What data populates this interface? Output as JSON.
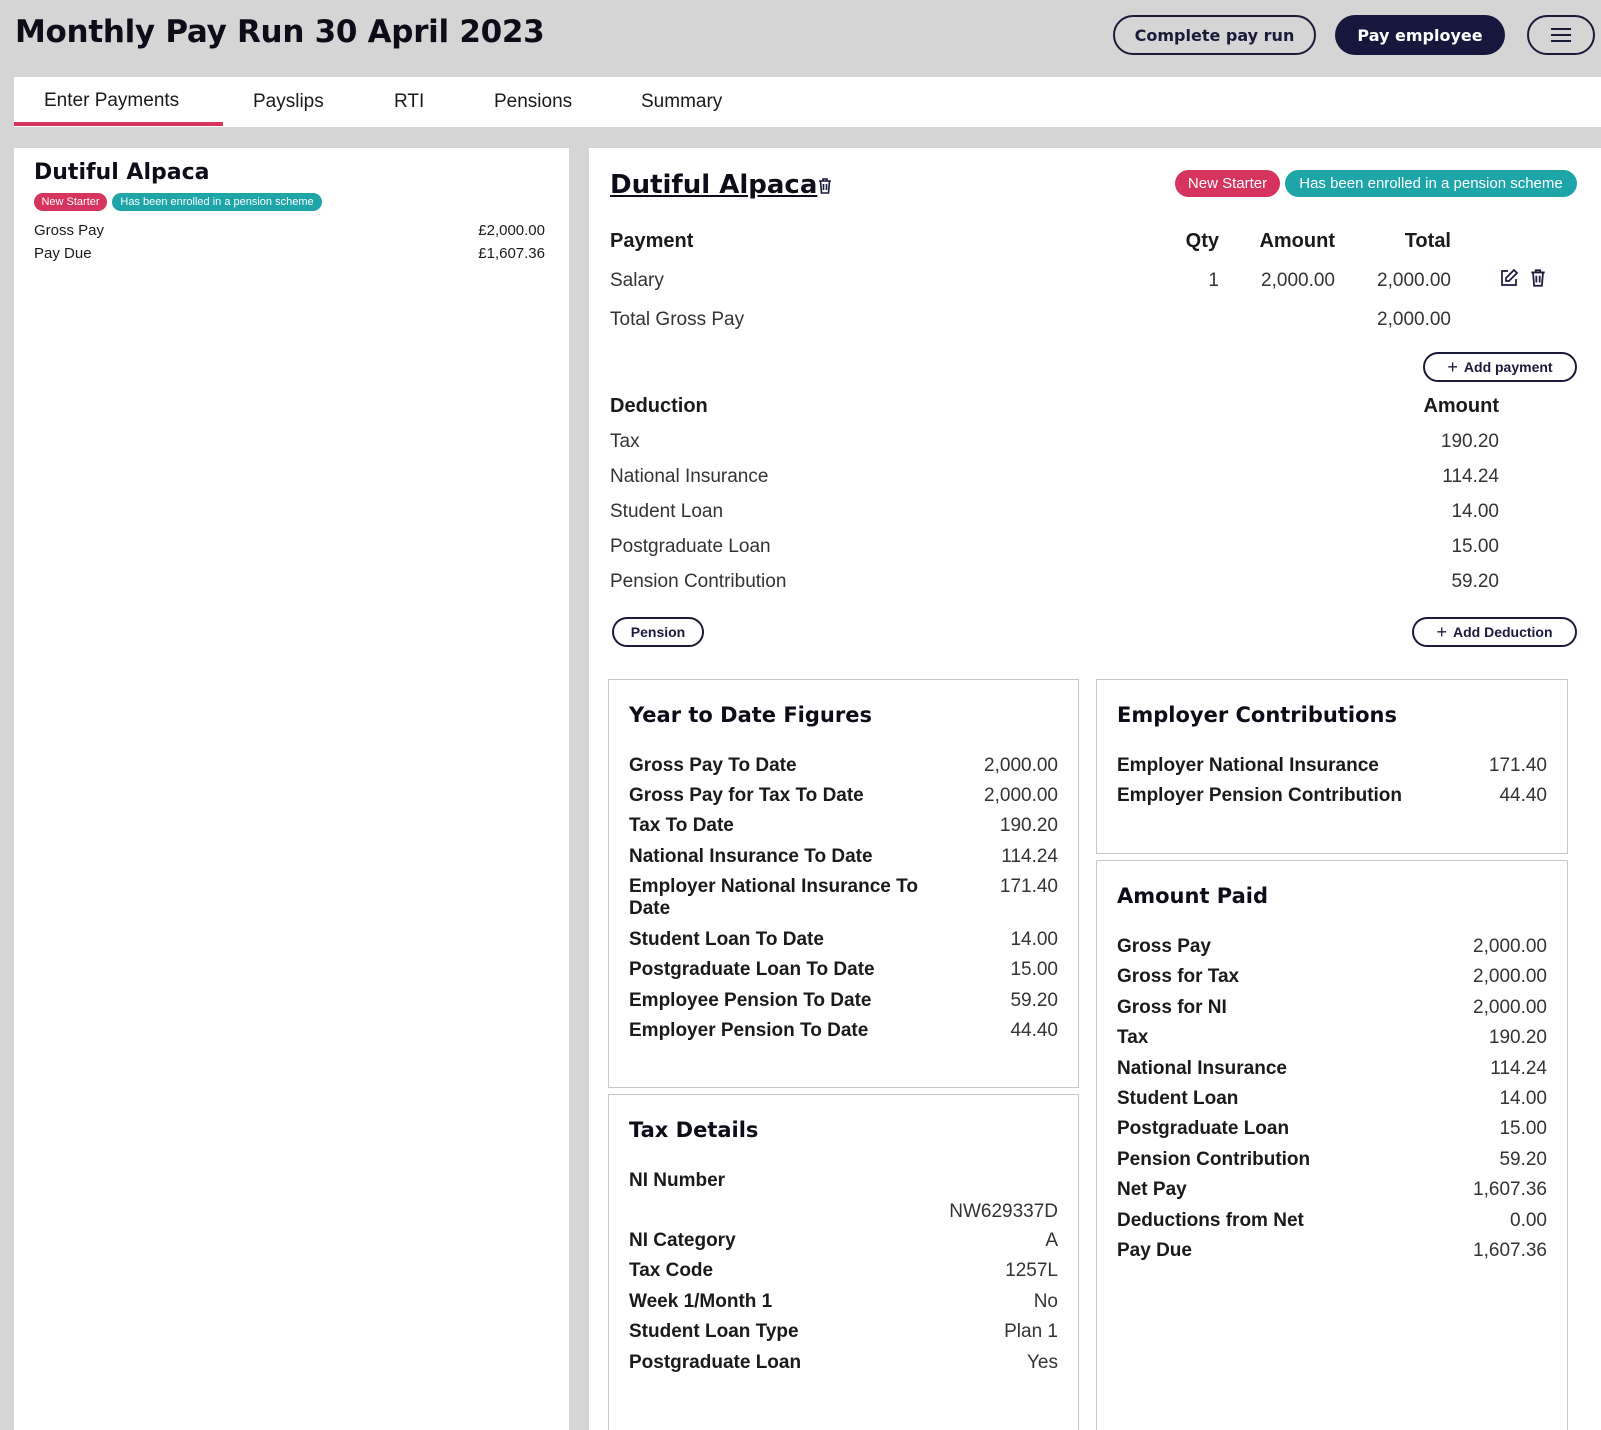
{
  "header": {
    "title": "Monthly Pay Run 30 April 2023",
    "complete_label": "Complete pay run",
    "pay_label": "Pay employee"
  },
  "tabs": [
    "Enter Payments",
    "Payslips",
    "RTI",
    "Pensions",
    "Summary"
  ],
  "active_tab": "Enter Payments",
  "colors": {
    "accent": "#d6335e",
    "teal": "#1da5a8",
    "navy": "#17173d"
  },
  "employee_list": {
    "name": "Dutiful Alpaca",
    "badges": [
      "New Starter",
      "Has been enrolled in a pension scheme"
    ],
    "gross_pay_label": "Gross Pay",
    "gross_pay_value": "£2,000.00",
    "pay_due_label": "Pay Due",
    "pay_due_value": "£1,607.36"
  },
  "detail": {
    "name": "Dutiful Alpaca",
    "badges": [
      "New Starter",
      "Has been enrolled in a pension scheme"
    ],
    "payments": {
      "headers": {
        "payment": "Payment",
        "qty": "Qty",
        "amount": "Amount",
        "total": "Total"
      },
      "rows": [
        {
          "name": "Salary",
          "qty": "1",
          "amount": "2,000.00",
          "total": "2,000.00"
        }
      ],
      "total_label": "Total Gross Pay",
      "total_value": "2,000.00",
      "add_label": "Add payment"
    },
    "deductions": {
      "headers": {
        "deduction": "Deduction",
        "amount": "Amount"
      },
      "rows": [
        {
          "name": "Tax",
          "amount": "190.20"
        },
        {
          "name": "National Insurance",
          "amount": "114.24"
        },
        {
          "name": "Student Loan",
          "amount": "14.00"
        },
        {
          "name": "Postgraduate Loan",
          "amount": "15.00"
        },
        {
          "name": "Pension Contribution",
          "amount": "59.20"
        }
      ],
      "pension_label": "Pension",
      "add_label": "Add Deduction"
    },
    "ytd": {
      "title": "Year to Date Figures",
      "rows": [
        {
          "label": "Gross Pay To Date",
          "value": "2,000.00"
        },
        {
          "label": "Gross Pay for Tax To Date",
          "value": "2,000.00"
        },
        {
          "label": "Tax To Date",
          "value": "190.20"
        },
        {
          "label": "National Insurance To Date",
          "value": "114.24"
        },
        {
          "label": "Employer National Insurance To Date",
          "value": "171.40"
        },
        {
          "label": "Student Loan To Date",
          "value": "14.00"
        },
        {
          "label": "Postgraduate Loan To Date",
          "value": "15.00"
        },
        {
          "label": "Employee Pension To Date",
          "value": "59.20"
        },
        {
          "label": "Employer Pension To Date",
          "value": "44.40"
        }
      ]
    },
    "tax": {
      "title": "Tax Details",
      "rows": [
        {
          "label": "NI Number",
          "value": "NW629337D"
        },
        {
          "label": "NI Category",
          "value": "A"
        },
        {
          "label": "Tax Code",
          "value": "1257L"
        },
        {
          "label": "Week 1/Month 1",
          "value": "No"
        },
        {
          "label": "Student Loan Type",
          "value": "Plan 1"
        },
        {
          "label": "Postgraduate Loan",
          "value": "Yes"
        }
      ]
    },
    "employer": {
      "title": "Employer Contributions",
      "rows": [
        {
          "label": "Employer National Insurance",
          "value": "171.40"
        },
        {
          "label": "Employer Pension Contribution",
          "value": "44.40"
        }
      ]
    },
    "paid": {
      "title": "Amount Paid",
      "rows": [
        {
          "label": "Gross Pay",
          "value": "2,000.00"
        },
        {
          "label": "Gross for Tax",
          "value": "2,000.00"
        },
        {
          "label": "Gross for NI",
          "value": "2,000.00"
        },
        {
          "label": "Tax",
          "value": "190.20"
        },
        {
          "label": "National Insurance",
          "value": "114.24"
        },
        {
          "label": "Student Loan",
          "value": "14.00"
        },
        {
          "label": "Postgraduate Loan",
          "value": "15.00"
        },
        {
          "label": "Pension Contribution",
          "value": "59.20"
        },
        {
          "label": "Net Pay",
          "value": "1,607.36"
        },
        {
          "label": "Deductions from Net",
          "value": "0.00"
        },
        {
          "label": "Pay Due",
          "value": "1,607.36"
        }
      ]
    }
  }
}
